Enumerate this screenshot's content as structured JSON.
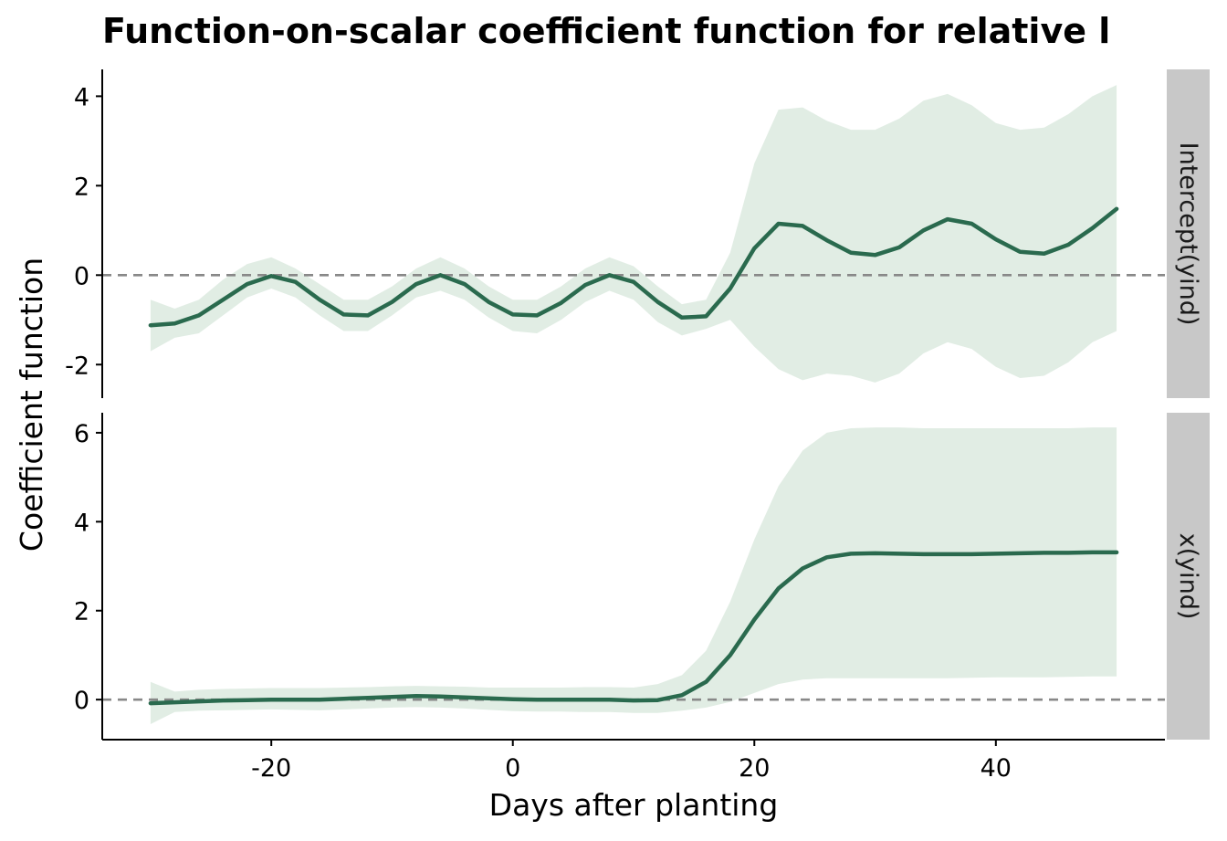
{
  "chart_data": {
    "type": "line",
    "title": "Function-on-scalar coefficient function for relative l",
    "xlabel": "Days after planting",
    "ylabel": "Coefficient function",
    "xlim": [
      -34,
      54
    ],
    "x_ticks": [
      "-20",
      "0",
      "20",
      "40"
    ],
    "x_tick_values": [
      -20,
      0,
      20,
      40
    ],
    "reference_line": 0,
    "grid": false,
    "line_color": "#2a6a4e",
    "band_color": "#e1ede4",
    "ref_color": "#888888",
    "strip_color": "#c8c8c8",
    "panels": [
      {
        "strip": "Intercept(yind)",
        "ylim": [
          -2.75,
          4.6
        ],
        "y_ticks": [
          "4",
          "2",
          "0",
          "-2"
        ],
        "y_tick_values": [
          4,
          2,
          0,
          -2
        ],
        "x": [
          -30,
          -28,
          -26,
          -24,
          -22,
          -20,
          -18,
          -16,
          -14,
          -12,
          -10,
          -8,
          -6,
          -4,
          -2,
          0,
          2,
          4,
          6,
          8,
          10,
          12,
          14,
          16,
          18,
          20,
          22,
          24,
          26,
          28,
          30,
          32,
          34,
          36,
          38,
          40,
          42,
          44,
          46,
          48,
          50
        ],
        "estimate": [
          -1.12,
          -1.08,
          -0.9,
          -0.55,
          -0.2,
          -0.02,
          -0.15,
          -0.55,
          -0.88,
          -0.9,
          -0.6,
          -0.2,
          0.0,
          -0.2,
          -0.6,
          -0.88,
          -0.9,
          -0.62,
          -0.22,
          0.0,
          -0.15,
          -0.6,
          -0.95,
          -0.92,
          -0.3,
          0.6,
          1.15,
          1.1,
          0.78,
          0.5,
          0.45,
          0.62,
          1.0,
          1.25,
          1.15,
          0.8,
          0.52,
          0.48,
          0.68,
          1.05,
          1.48
        ],
        "lower": [
          -1.7,
          -1.4,
          -1.3,
          -0.9,
          -0.5,
          -0.3,
          -0.5,
          -0.9,
          -1.25,
          -1.25,
          -0.9,
          -0.5,
          -0.35,
          -0.55,
          -0.95,
          -1.25,
          -1.3,
          -1.0,
          -0.6,
          -0.35,
          -0.55,
          -1.05,
          -1.35,
          -1.2,
          -1.0,
          -1.6,
          -2.1,
          -2.35,
          -2.2,
          -2.25,
          -2.4,
          -2.2,
          -1.75,
          -1.5,
          -1.65,
          -2.05,
          -2.3,
          -2.25,
          -1.95,
          -1.5,
          -1.25
        ],
        "upper": [
          -0.55,
          -0.75,
          -0.55,
          -0.1,
          0.25,
          0.4,
          0.15,
          -0.2,
          -0.55,
          -0.55,
          -0.25,
          0.15,
          0.4,
          0.15,
          -0.25,
          -0.55,
          -0.55,
          -0.25,
          0.15,
          0.4,
          0.2,
          -0.25,
          -0.65,
          -0.55,
          0.5,
          2.5,
          3.7,
          3.75,
          3.45,
          3.25,
          3.25,
          3.5,
          3.9,
          4.05,
          3.8,
          3.4,
          3.25,
          3.3,
          3.6,
          4.0,
          4.25
        ]
      },
      {
        "strip": "x(yind)",
        "ylim": [
          -0.9,
          6.45
        ],
        "y_ticks": [
          "6",
          "4",
          "2",
          "0"
        ],
        "y_tick_values": [
          6,
          4,
          2,
          0
        ],
        "x": [
          -30,
          -28,
          -26,
          -24,
          -22,
          -20,
          -18,
          -16,
          -14,
          -12,
          -10,
          -8,
          -6,
          -4,
          -2,
          0,
          2,
          4,
          6,
          8,
          10,
          12,
          14,
          16,
          18,
          20,
          22,
          24,
          26,
          28,
          30,
          32,
          34,
          36,
          38,
          40,
          42,
          44,
          46,
          48,
          50
        ],
        "estimate": [
          -0.08,
          -0.06,
          -0.04,
          -0.02,
          -0.01,
          0.0,
          0.0,
          0.0,
          0.02,
          0.04,
          0.06,
          0.08,
          0.07,
          0.05,
          0.03,
          0.01,
          0.0,
          0.0,
          0.0,
          0.0,
          -0.02,
          -0.01,
          0.1,
          0.4,
          1.0,
          1.8,
          2.5,
          2.95,
          3.2,
          3.28,
          3.29,
          3.28,
          3.27,
          3.27,
          3.27,
          3.28,
          3.29,
          3.3,
          3.3,
          3.31,
          3.31
        ],
        "lower": [
          -0.55,
          -0.28,
          -0.25,
          -0.24,
          -0.23,
          -0.22,
          -0.23,
          -0.24,
          -0.22,
          -0.2,
          -0.18,
          -0.17,
          -0.18,
          -0.2,
          -0.23,
          -0.26,
          -0.27,
          -0.27,
          -0.28,
          -0.28,
          -0.3,
          -0.3,
          -0.25,
          -0.18,
          -0.05,
          0.15,
          0.35,
          0.45,
          0.48,
          0.48,
          0.48,
          0.48,
          0.48,
          0.48,
          0.49,
          0.5,
          0.5,
          0.5,
          0.51,
          0.52,
          0.52
        ],
        "upper": [
          0.4,
          0.18,
          0.22,
          0.24,
          0.25,
          0.26,
          0.26,
          0.26,
          0.27,
          0.28,
          0.3,
          0.31,
          0.3,
          0.29,
          0.27,
          0.27,
          0.27,
          0.27,
          0.28,
          0.28,
          0.27,
          0.35,
          0.55,
          1.1,
          2.2,
          3.6,
          4.8,
          5.6,
          6.0,
          6.1,
          6.12,
          6.12,
          6.1,
          6.1,
          6.1,
          6.1,
          6.1,
          6.1,
          6.1,
          6.12,
          6.12
        ]
      }
    ]
  }
}
